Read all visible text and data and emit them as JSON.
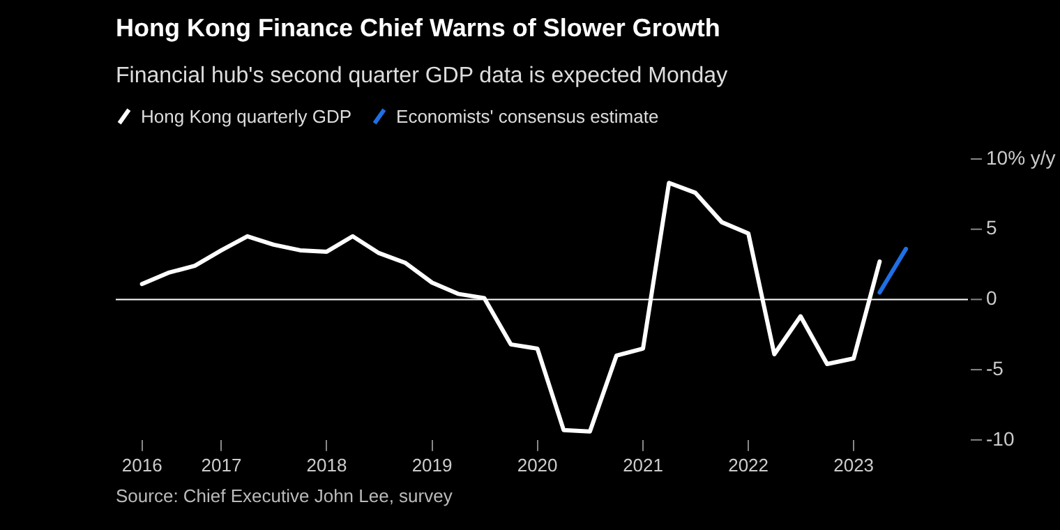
{
  "chart_data": {
    "type": "line",
    "title": "Hong Kong Finance Chief Warns of Slower Growth",
    "subtitle": "Financial hub's second quarter GDP data is expected Monday",
    "annotations": [
      "Source: Chief Executive John Lee, survey"
    ],
    "x": [
      "2016-04",
      "2016-07",
      "2016-10",
      "2017-01",
      "2017-04",
      "2017-07",
      "2017-10",
      "2018-01",
      "2018-04",
      "2018-07",
      "2018-10",
      "2019-01",
      "2019-04",
      "2019-07",
      "2019-10",
      "2020-01",
      "2020-04",
      "2020-07",
      "2020-10",
      "2021-01",
      "2021-04",
      "2021-07",
      "2021-10",
      "2022-01",
      "2022-04",
      "2022-07",
      "2022-10",
      "2023-01",
      "2023-04"
    ],
    "series": [
      {
        "name": "Hong Kong quarterly GDP",
        "color": "#ffffff",
        "values": [
          1.1,
          1.9,
          2.4,
          3.5,
          4.5,
          3.9,
          3.5,
          3.4,
          4.5,
          3.3,
          2.6,
          1.2,
          0.4,
          0.1,
          -3.2,
          -3.5,
          -9.3,
          -9.4,
          -4.0,
          -3.5,
          8.3,
          7.6,
          5.5,
          4.7,
          -3.9,
          -1.2,
          -4.6,
          -4.2,
          2.7
        ]
      },
      {
        "name": "Economists' consensus estimate",
        "color": "#1f6fe5",
        "x": [
          "2023-04",
          "2023-07"
        ],
        "values": [
          0.5,
          3.6
        ]
      }
    ],
    "xlim": [
      "2016-01",
      "2024-02"
    ],
    "xticks": [
      {
        "value": "2016-04",
        "label": "2016"
      },
      "2017",
      "2018",
      "2019",
      "2020",
      "2021",
      "2022",
      "2023"
    ],
    "ylim": [
      -10,
      10
    ],
    "yticks": [
      {
        "value": 10,
        "label": "10% y/y"
      },
      5,
      0,
      -5,
      -10
    ],
    "ref_lines": [
      {
        "axis": "y",
        "value": 0,
        "color": "#ffffff"
      }
    ],
    "legend": "top left",
    "marker": "none",
    "line_style": "solid",
    "grid": false
  }
}
